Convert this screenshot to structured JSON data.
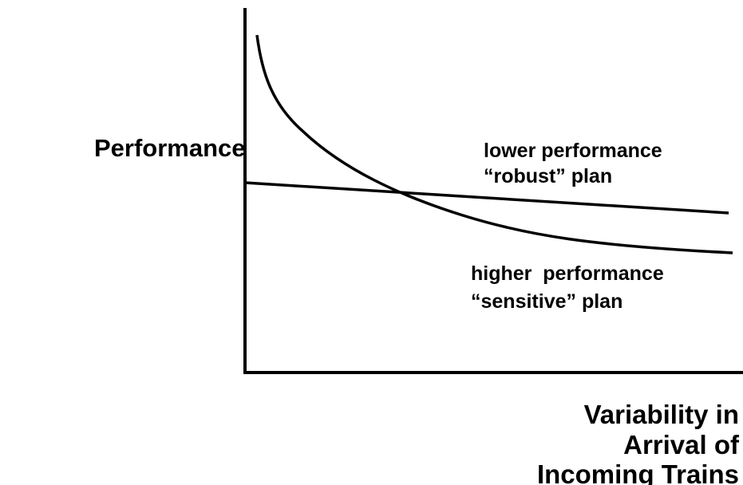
{
  "y_axis_label": "Performance",
  "x_axis_label": [
    "Variability in",
    "Arrival of",
    "Incoming Trains"
  ],
  "curves": [
    {
      "label": [
        "lower performance",
        "“robust” plan"
      ]
    },
    {
      "label": [
        "higher  performance",
        "“sensitive” plan"
      ]
    }
  ]
}
